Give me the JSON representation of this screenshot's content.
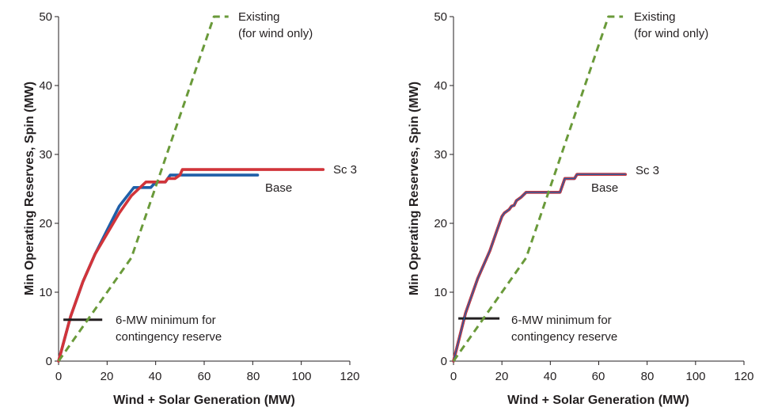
{
  "chart_data": [
    {
      "type": "line",
      "xlabel": "Wind + Solar Generation (MW)",
      "ylabel": "Min Operating Reserves, Spin (MW)",
      "xlim": [
        0,
        120
      ],
      "ylim": [
        0,
        50
      ],
      "xticks": [
        "0",
        "20",
        "40",
        "60",
        "80",
        "100",
        "120"
      ],
      "yticks": [
        "0",
        "10",
        "20",
        "30",
        "40",
        "50"
      ],
      "grid": false,
      "colors": {
        "base": "#1f5fa8",
        "sc3": "#d1343a",
        "existing": "#6a9a3a",
        "minimum": "#231f20"
      },
      "series": [
        {
          "name": "Existing",
          "name_line2": "(for wind only)",
          "style": "dashed",
          "x": [
            0,
            30,
            64,
            70
          ],
          "y": [
            0,
            15,
            50,
            50
          ]
        },
        {
          "name": "Base",
          "x": [
            0,
            5,
            10,
            15,
            20,
            25,
            31,
            36,
            38,
            40,
            42,
            44,
            45,
            46,
            48,
            50,
            60,
            70,
            82
          ],
          "y": [
            0,
            6.5,
            11.5,
            15.5,
            19,
            22.5,
            25.2,
            25.2,
            25.2,
            26,
            26,
            26,
            26.5,
            27,
            27,
            27,
            27,
            27,
            27
          ]
        },
        {
          "name": "Sc 3",
          "x": [
            0,
            5,
            10,
            15,
            20,
            25,
            30,
            33,
            36,
            40,
            42,
            44,
            45,
            46,
            48,
            50,
            51,
            60,
            70,
            80,
            90,
            100,
            109
          ],
          "y": [
            0,
            6.5,
            11.5,
            15.5,
            18.5,
            21.5,
            24,
            25,
            26,
            26,
            26,
            26,
            26.5,
            26.5,
            26.5,
            27,
            27.8,
            27.8,
            27.8,
            27.8,
            27.8,
            27.8,
            27.8
          ]
        },
        {
          "name": "6-MW minimum for",
          "name_line2": "contingency reserve",
          "x": [
            2,
            18
          ],
          "y": [
            6,
            6
          ]
        }
      ]
    },
    {
      "type": "line",
      "xlabel": "Wind + Solar Generation (MW)",
      "ylabel": "Min Operating Reserves, Spin (MW)",
      "xlim": [
        0,
        120
      ],
      "ylim": [
        0,
        50
      ],
      "xticks": [
        "0",
        "20",
        "40",
        "60",
        "80",
        "100",
        "120"
      ],
      "yticks": [
        "0",
        "10",
        "20",
        "30",
        "40",
        "50"
      ],
      "grid": false,
      "colors": {
        "base": "#1f5fa8",
        "sc3": "#d1343a",
        "existing": "#6a9a3a",
        "minimum": "#231f20"
      },
      "series": [
        {
          "name": "Existing",
          "name_line2": "(for wind only)",
          "style": "dashed",
          "x": [
            0,
            30,
            64,
            70
          ],
          "y": [
            0,
            15,
            50,
            50
          ]
        },
        {
          "name": "Base",
          "x": [
            0,
            5,
            10,
            15,
            18,
            20,
            21,
            23,
            24,
            25,
            26,
            28,
            30,
            32,
            34,
            36,
            38,
            41,
            44,
            46,
            48,
            50,
            51,
            55,
            60,
            65,
            71
          ],
          "y": [
            0,
            7,
            12,
            16,
            19,
            21,
            21.5,
            22,
            22.5,
            22.6,
            23.3,
            23.8,
            24.5,
            24.5,
            24.5,
            24.5,
            24.5,
            24.5,
            24.5,
            26.5,
            26.5,
            26.5,
            27.1,
            27.1,
            27.1,
            27.1,
            27.1
          ]
        },
        {
          "name": "Sc 3",
          "x": [
            0,
            5,
            10,
            15,
            18,
            20,
            21,
            23,
            24,
            25,
            26,
            28,
            30,
            32,
            34,
            36,
            38,
            41,
            44,
            46,
            48,
            50,
            51,
            55,
            60,
            65,
            71
          ],
          "y": [
            0,
            7,
            12,
            16,
            19,
            21,
            21.5,
            22,
            22.5,
            22.6,
            23.3,
            23.8,
            24.5,
            24.5,
            24.5,
            24.5,
            24.5,
            24.5,
            24.5,
            26.5,
            26.5,
            26.5,
            27.1,
            27.1,
            27.1,
            27.1,
            27.1
          ]
        },
        {
          "name": "6-MW minimum for",
          "name_line2": "contingency reserve",
          "x": [
            2,
            19
          ],
          "y": [
            6.2,
            6.2
          ]
        }
      ]
    }
  ]
}
